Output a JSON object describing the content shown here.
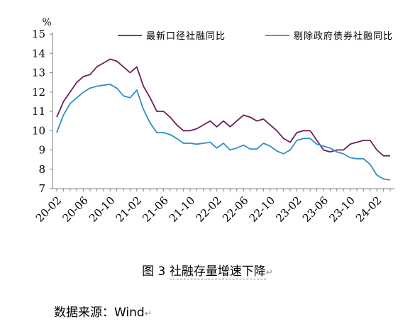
{
  "caption": {
    "prefix": "图 3 ",
    "text": "社融存量增速下降",
    "mark": "↵"
  },
  "source": {
    "text": "数据来源：Wind",
    "mark": "↵"
  },
  "chart_data": {
    "type": "line",
    "unit": "%",
    "ylim": [
      7,
      15
    ],
    "yticks": [
      "7",
      "8",
      "9",
      "10",
      "11",
      "12",
      "13",
      "14",
      "15"
    ],
    "x_tick_labels": [
      "20-02",
      "20-06",
      "20-10",
      "21-02",
      "21-06",
      "21-10",
      "22-02",
      "22-06",
      "22-10",
      "23-02",
      "23-06",
      "23-10",
      "24-02"
    ],
    "x": [
      "20-02",
      "20-03",
      "20-04",
      "20-05",
      "20-06",
      "20-07",
      "20-08",
      "20-09",
      "20-10",
      "20-11",
      "20-12",
      "21-01",
      "21-02",
      "21-03",
      "21-04",
      "21-05",
      "21-06",
      "21-07",
      "21-08",
      "21-09",
      "21-10",
      "21-11",
      "21-12",
      "22-01",
      "22-02",
      "22-03",
      "22-04",
      "22-05",
      "22-06",
      "22-07",
      "22-08",
      "22-09",
      "22-10",
      "22-11",
      "22-12",
      "23-01",
      "23-02",
      "23-03",
      "23-04",
      "23-05",
      "23-06",
      "23-07",
      "23-08",
      "23-09",
      "23-10",
      "23-11",
      "23-12",
      "24-01",
      "24-02",
      "24-03",
      "24-04"
    ],
    "legend_position": "top-right",
    "series": [
      {
        "name": "最新口径社融同比",
        "color": "#6b1f5c",
        "values": [
          10.7,
          11.5,
          12.0,
          12.5,
          12.8,
          12.9,
          13.3,
          13.5,
          13.7,
          13.6,
          13.3,
          13.0,
          13.3,
          12.3,
          11.7,
          11.0,
          11.0,
          10.7,
          10.3,
          10.0,
          10.0,
          10.1,
          10.3,
          10.5,
          10.2,
          10.5,
          10.2,
          10.5,
          10.8,
          10.7,
          10.5,
          10.6,
          10.3,
          10.0,
          9.6,
          9.4,
          9.9,
          10.0,
          10.0,
          9.5,
          9.0,
          8.9,
          9.0,
          9.0,
          9.3,
          9.4,
          9.5,
          9.5,
          9.0,
          8.7,
          8.7
        ]
      },
      {
        "name": "剔除政府债券社融同比",
        "color": "#2e8fc6",
        "values": [
          9.9,
          10.8,
          11.4,
          11.7,
          12.0,
          12.2,
          12.3,
          12.35,
          12.4,
          12.2,
          11.8,
          11.7,
          12.1,
          11.1,
          10.4,
          9.9,
          9.9,
          9.8,
          9.6,
          9.35,
          9.35,
          9.3,
          9.35,
          9.4,
          9.1,
          9.35,
          9.0,
          9.1,
          9.25,
          9.05,
          9.05,
          9.35,
          9.2,
          8.95,
          8.8,
          9.0,
          9.5,
          9.6,
          9.6,
          9.3,
          9.2,
          9.1,
          8.9,
          8.8,
          8.6,
          8.55,
          8.55,
          8.25,
          7.7,
          7.5,
          7.45
        ]
      }
    ]
  }
}
